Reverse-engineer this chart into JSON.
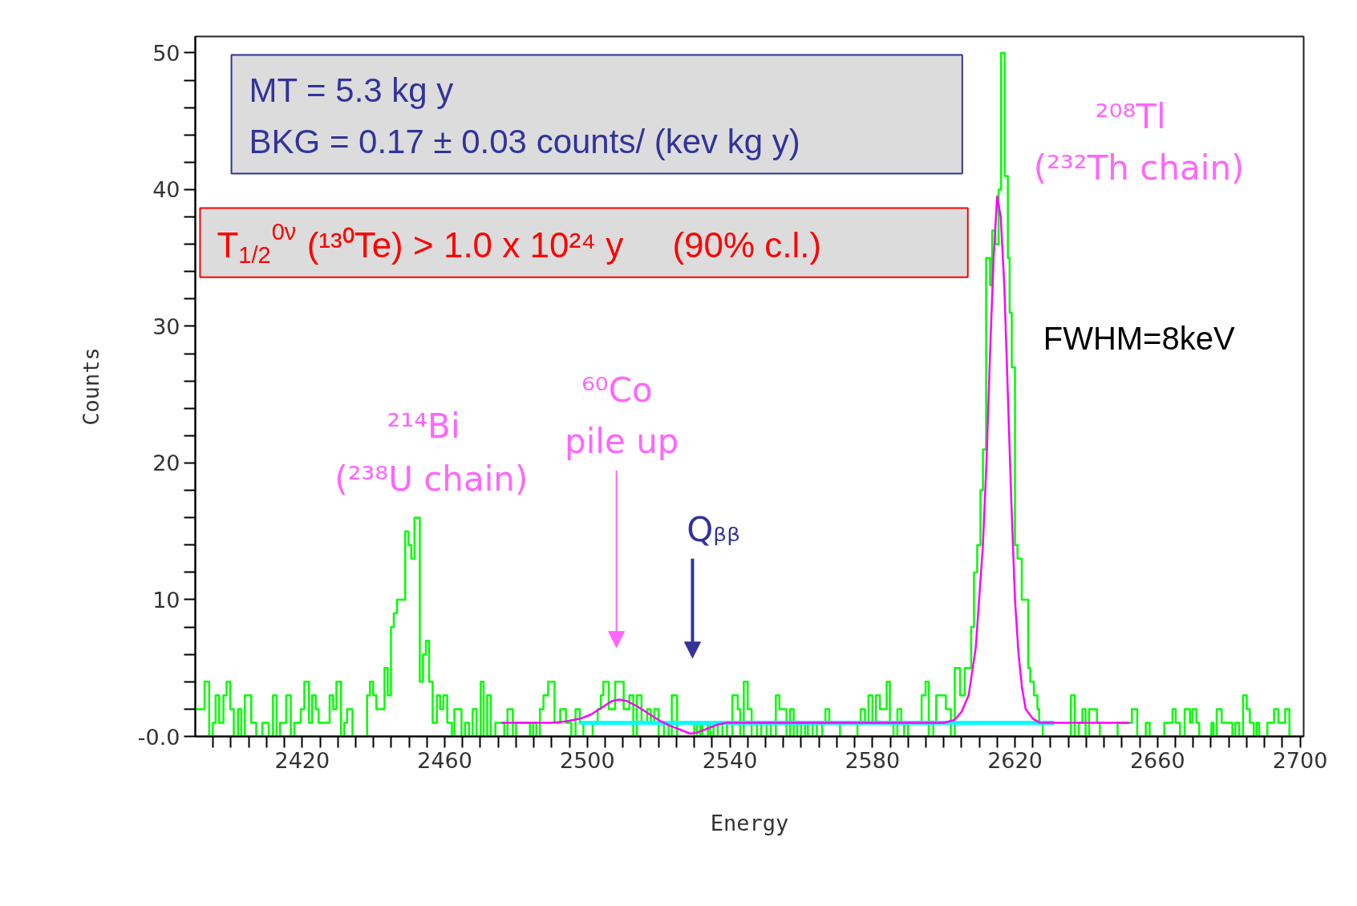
{
  "chart_data": {
    "type": "histogram",
    "xlabel": "Energy",
    "ylabel": "Counts",
    "xlim": [
      2390,
      2701
    ],
    "ylim": [
      0,
      51.2
    ],
    "xticks": [
      {
        "value": 2395,
        "label": null
      },
      {
        "value": 2400,
        "label": null
      },
      {
        "value": 2405,
        "label": null
      },
      {
        "value": 2410,
        "label": null
      },
      {
        "value": 2415,
        "label": null
      },
      2420,
      {
        "value": 2425,
        "label": null
      },
      {
        "value": 2430,
        "label": null
      },
      {
        "value": 2435,
        "label": null
      },
      {
        "value": 2440,
        "label": null
      },
      {
        "value": 2445,
        "label": null
      },
      {
        "value": 2450,
        "label": null
      },
      {
        "value": 2455,
        "label": null
      },
      2460,
      {
        "value": 2465,
        "label": null
      },
      {
        "value": 2470,
        "label": null
      },
      {
        "value": 2475,
        "label": null
      },
      {
        "value": 2480,
        "label": null
      },
      {
        "value": 2485,
        "label": null
      },
      {
        "value": 2490,
        "label": null
      },
      {
        "value": 2495,
        "label": null
      },
      2500,
      {
        "value": 2505,
        "label": null
      },
      {
        "value": 2510,
        "label": null
      },
      {
        "value": 2515,
        "label": null
      },
      {
        "value": 2520,
        "label": null
      },
      {
        "value": 2525,
        "label": null
      },
      {
        "value": 2530,
        "label": null
      },
      {
        "value": 2535,
        "label": null
      },
      2540,
      {
        "value": 2545,
        "label": null
      },
      {
        "value": 2550,
        "label": null
      },
      {
        "value": 2555,
        "label": null
      },
      {
        "value": 2560,
        "label": null
      },
      {
        "value": 2565,
        "label": null
      },
      {
        "value": 2570,
        "label": null
      },
      {
        "value": 2575,
        "label": null
      },
      2580,
      {
        "value": 2585,
        "label": null
      },
      {
        "value": 2590,
        "label": null
      },
      {
        "value": 2595,
        "label": null
      },
      {
        "value": 2600,
        "label": null
      },
      {
        "value": 2605,
        "label": null
      },
      {
        "value": 2610,
        "label": null
      },
      {
        "value": 2615,
        "label": null
      },
      2620,
      {
        "value": 2625,
        "label": null
      },
      {
        "value": 2630,
        "label": null
      },
      {
        "value": 2635,
        "label": null
      },
      {
        "value": 2640,
        "label": null
      },
      {
        "value": 2645,
        "label": null
      },
      {
        "value": 2650,
        "label": null
      },
      {
        "value": 2655,
        "label": null
      },
      2660,
      {
        "value": 2665,
        "label": null
      },
      {
        "value": 2670,
        "label": null
      },
      {
        "value": 2675,
        "label": null
      },
      {
        "value": 2680,
        "label": null
      },
      {
        "value": 2685,
        "label": null
      },
      {
        "value": 2690,
        "label": null
      },
      {
        "value": 2695,
        "label": null
      },
      2700
    ],
    "yticks": [
      {
        "value": 0,
        "label": "-0.0"
      },
      {
        "value": 2,
        "label": null
      },
      {
        "value": 4,
        "label": null
      },
      {
        "value": 6,
        "label": null
      },
      {
        "value": 8,
        "label": null
      },
      10,
      {
        "value": 12,
        "label": null
      },
      {
        "value": 14,
        "label": null
      },
      {
        "value": 16,
        "label": null
      },
      {
        "value": 18,
        "label": null
      },
      20,
      {
        "value": 22,
        "label": null
      },
      {
        "value": 24,
        "label": null
      },
      {
        "value": 26,
        "label": null
      },
      {
        "value": 28,
        "label": null
      },
      30,
      {
        "value": 32,
        "label": null
      },
      {
        "value": 34,
        "label": null
      },
      {
        "value": 36,
        "label": null
      },
      {
        "value": 38,
        "label": null
      },
      40,
      {
        "value": 42,
        "label": null
      },
      {
        "value": 44,
        "label": null
      },
      {
        "value": 46,
        "label": null
      },
      {
        "value": 48,
        "label": null
      },
      50
    ],
    "grid": false,
    "annotations": [
      "MT = 5.3 kg y\nBKG = 0.17 ± 0.03 counts/ (kev kg y)",
      "T$_{1/2}$$^{0ν}$ (¹³⁰Te) > 1.0 x 10²⁴ y     (90% c.l.)",
      "FWHM=8keV",
      {
        "text": "²⁰⁸Tl\n(²³²Th chain)",
        "x": 2616.5,
        "y": 50
      },
      {
        "text": "²¹⁴Bi\n(²³⁸U chain)",
        "x": 2452,
        "y": 16
      },
      "⁶⁰Co\npile up",
      "Qᵦᵦ"
    ],
    "series": [
      {
        "color": "#00ff00",
        "bins": [
          2390,
          2392.6,
          2393.9,
          2394.9,
          2395.7,
          2396.7,
          2397.9,
          2398.8,
          2399.8,
          2400.8,
          2402.0,
          2402.9,
          2403.9,
          2405.7,
          2407.1,
          2408.8,
          2410.6,
          2411.8,
          2412.8,
          2413.8,
          2415.5,
          2416.8,
          2417.8,
          2419.6,
          2420.6,
          2421.9,
          2422.8,
          2423.8,
          2424.6,
          2427.7,
          2428.7,
          2429.6,
          2430.9,
          2431.8,
          2432.6,
          2434.1,
          2438.2,
          2439.0,
          2439.9,
          2440.8,
          2443.1,
          2444.0,
          2444.9,
          2445.7,
          2446.6,
          2448.9,
          2449.8,
          2450.6,
          2451.5,
          2453.0,
          2453.9,
          2454.7,
          2455.6,
          2456.6,
          2457.8,
          2458.7,
          2459.6,
          2460.7,
          2462.0,
          2462.7,
          2464.7,
          2465.7,
          2466.8,
          2467.8,
          2468.9,
          2470.1,
          2470.9,
          2471.9,
          2472.9,
          2474.2,
          2476.7,
          2477.6,
          2479.1,
          2480.0,
          2483.9,
          2484.8,
          2485.7,
          2486.7,
          2487.7,
          2489.0,
          2490.8,
          2492.4,
          2494.0,
          2495.5,
          2496.7,
          2497.9,
          2498.9,
          2501.5,
          2502.9,
          2503.8,
          2504.5,
          2506.0,
          2507.8,
          2510.2,
          2511.8,
          2512.9,
          2513.9,
          2515.2,
          2516.8,
          2517.8,
          2518.8,
          2520.0,
          2521.5,
          2522.8,
          2523.7,
          2525.2,
          2530.0,
          2530.8,
          2531.7,
          2532.3,
          2533.8,
          2534.5,
          2535.4,
          2536.6,
          2537.9,
          2539.2,
          2540.7,
          2542.2,
          2542.9,
          2543.9,
          2545.0,
          2546.1,
          2547.6,
          2548.8,
          2550.3,
          2551.5,
          2552.9,
          2553.9,
          2555.9,
          2556.9,
          2557.9,
          2558.9,
          2560.0,
          2561.1,
          2561.9,
          2563.2,
          2564.4,
          2565.9,
          2566.8,
          2567.9,
          2570.9,
          2575.8,
          2576.7,
          2577.9,
          2578.9,
          2580.0,
          2581.0,
          2582.1,
          2584.0,
          2584.9,
          2585.9,
          2587.0,
          2588.1,
          2588.9,
          2590.0,
          2593.8,
          2594.9,
          2595.8,
          2597.1,
          2597.9,
          2600.6,
          2602.0,
          2603.1,
          2604.6,
          2605.9,
          2607.7,
          2608.5,
          2609.4,
          2610.3,
          2611.0,
          2611.9,
          2613.0,
          2613.6,
          2614.5,
          2615.4,
          2616.1,
          2617.1,
          2618.0,
          2618.5,
          2619.1,
          2620.0,
          2620.7,
          2621.9,
          2623.7,
          2624.3,
          2625.3,
          2626.3,
          2626.8,
          2627.8,
          2635.7,
          2636.8,
          2637.9,
          2638.9,
          2639.8,
          2640.8,
          2643.0,
          2643.8,
          2648.8,
          2652.8,
          2654.3,
          2656.7,
          2657.8,
          2661.9,
          2664.2,
          2665.1,
          2666.3,
          2667.6,
          2669.1,
          2669.8,
          2670.9,
          2671.7,
          2675.1,
          2675.7,
          2676.6,
          2678.0,
          2681.0,
          2681.8,
          2682.9,
          2684.0,
          2685.0,
          2685.9,
          2687.0,
          2687.8,
          2688.5,
          2690.8,
          2692.7,
          2693.9,
          2695.8,
          2697.0,
          2700
        ],
        "values": [
          2,
          4,
          0,
          1,
          3,
          1,
          3,
          4,
          2,
          0,
          2,
          0,
          3,
          1,
          0,
          1,
          0,
          3,
          0,
          1,
          3,
          0,
          1,
          2,
          4,
          1,
          3,
          2,
          1,
          3,
          2,
          4,
          0,
          1,
          2,
          0,
          3,
          4,
          3,
          2,
          5,
          3,
          8,
          9,
          10,
          15,
          14,
          13,
          16,
          4,
          6,
          7,
          4,
          1,
          3,
          2,
          3,
          1,
          0,
          2,
          0,
          1,
          0,
          2,
          0,
          4,
          0,
          3,
          0,
          1,
          0,
          2,
          0,
          1,
          0,
          1,
          0,
          2,
          3,
          4,
          1,
          2,
          1,
          0,
          2,
          1,
          0,
          1,
          2,
          3,
          4,
          2,
          4,
          2,
          3,
          0,
          3,
          1,
          2,
          1,
          2,
          0,
          1,
          0,
          3,
          0,
          1,
          0,
          1,
          0,
          1,
          0,
          1,
          0,
          1,
          0,
          3,
          2,
          0,
          4,
          2,
          0,
          1,
          0,
          1,
          0,
          3,
          2,
          0,
          2,
          0,
          1,
          0,
          1,
          0,
          1,
          0,
          1,
          2,
          1,
          0,
          1,
          2,
          1,
          3,
          1,
          3,
          2,
          4,
          1,
          0,
          2,
          1,
          0,
          1,
          3,
          4,
          0,
          1,
          3,
          2,
          0,
          5,
          3,
          5,
          8,
          12,
          14,
          18,
          21,
          35,
          33,
          37,
          36,
          40,
          50,
          41,
          35,
          31,
          27,
          14,
          13,
          10,
          5,
          4,
          3,
          2,
          1,
          0,
          3,
          0,
          1,
          2,
          0,
          2,
          1,
          0,
          1,
          2,
          0,
          1,
          0,
          1,
          2,
          1,
          0,
          2,
          1,
          2,
          1,
          0,
          1,
          0,
          2,
          1,
          0,
          1,
          0,
          3,
          2,
          1,
          0,
          1,
          0,
          1,
          2,
          1,
          2,
          0
        ]
      },
      {
        "type": "line",
        "color": "#00ffff",
        "x": [
          2498,
          2631
        ],
        "values": [
          1,
          1
        ]
      },
      {
        "type": "line",
        "color": "#ff00ff",
        "x": [
          2476,
          2490,
          2494,
          2498,
          2501,
          2504,
          2507,
          2509,
          2511,
          2514,
          2517,
          2520,
          2523,
          2526,
          2529,
          2531,
          2534,
          2537,
          2539,
          2600,
          2603,
          2605,
          2607,
          2609,
          2611,
          2612,
          2613,
          2614,
          2615,
          2616,
          2617,
          2618,
          2619,
          2620,
          2621,
          2622,
          2623,
          2625,
          2627,
          2652
        ],
        "values": [
          1,
          1,
          1.1,
          1.3,
          1.6,
          2.1,
          2.6,
          2.7,
          2.6,
          2.2,
          1.7,
          1.2,
          0.8,
          0.5,
          0.2,
          0.3,
          0.6,
          0.9,
          1,
          1,
          1.2,
          1.8,
          3,
          6.5,
          14,
          20,
          28,
          35,
          39.5,
          38,
          33,
          25,
          17,
          10,
          6,
          3.5,
          2,
          1.3,
          1,
          1
        ]
      }
    ]
  }
}
